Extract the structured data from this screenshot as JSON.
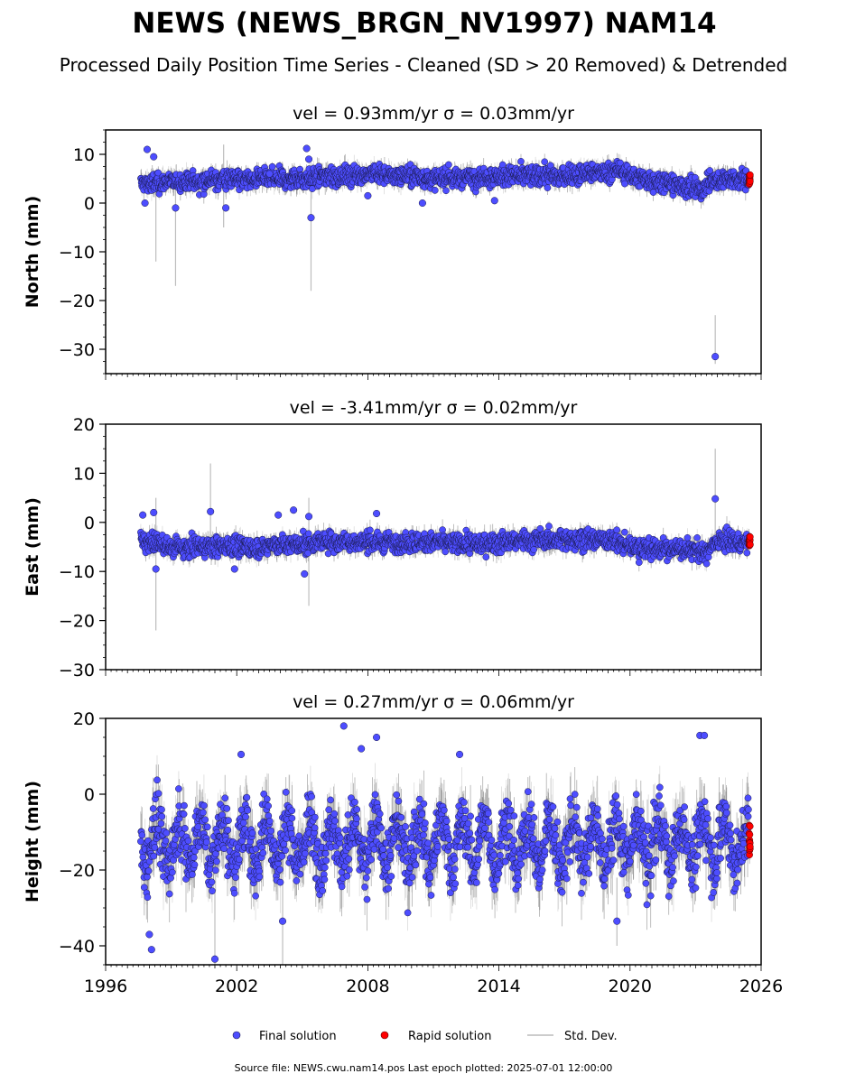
{
  "title": "NEWS (NEWS_BRGN_NV1997) NAM14",
  "subtitle": "Processed Daily Position Time Series - Cleaned (SD > 20 Removed) & Detrended",
  "footer": "Source file: NEWS.cwu.nam14.pos  Last epoch plotted: 2025-07-01 12:00:00",
  "legend": {
    "placement": "bottom-center",
    "items": [
      {
        "label": "Final solution",
        "color": "#4a4aff",
        "kind": "marker"
      },
      {
        "label": "Rapid solution",
        "color": "#ff0000",
        "kind": "marker"
      },
      {
        "label": "Std. Dev.",
        "color": "#cccccc",
        "kind": "line"
      }
    ]
  },
  "colors": {
    "final_fill": "#4d4dff",
    "final_edge": "#1a1a4d",
    "rapid_fill": "#ff0000",
    "errorbar": "#bdbdbd",
    "errorbar_dense": "#6e6e6e"
  },
  "chart_data": [
    {
      "type": "scatter",
      "panel": "north",
      "title": "vel = 0.93mm/yr   σ = 0.03mm/yr",
      "ylabel": "North (mm)",
      "xlabel": "",
      "xlim": [
        1996,
        2026
      ],
      "ylim": [
        -35,
        15
      ],
      "yticks": [
        10,
        0,
        -10,
        -20,
        -30
      ],
      "ytick_labels": [
        "10",
        "0",
        "−10",
        "−20",
        "−30"
      ],
      "show_x_ticklabels": false,
      "series": [
        {
          "name": "Final solution",
          "x_range": [
            1997.6,
            2025.45
          ],
          "baseline": [
            [
              1997.6,
              4.0
            ],
            [
              2001,
              4.8
            ],
            [
              2005,
              5.0
            ],
            [
              2008,
              6.0
            ],
            [
              2011,
              5.0
            ],
            [
              2014,
              5.5
            ],
            [
              2017,
              5.5
            ],
            [
              2019.5,
              6.5
            ],
            [
              2021,
              4.5
            ],
            [
              2022.5,
              3.5
            ],
            [
              2023.3,
              2.5
            ],
            [
              2023.6,
              4.5
            ],
            [
              2025.45,
              5.0
            ]
          ],
          "spread": 1.4,
          "sigma": 1.5
        },
        {
          "name": "Rapid solution",
          "x_range": [
            2025.45,
            2025.5
          ],
          "baseline": [
            [
              2025.45,
              5.0
            ],
            [
              2025.5,
              5.0
            ]
          ],
          "spread": 1.0,
          "sigma": 0.8
        }
      ],
      "outliers": [
        [
          1997.9,
          11.0
        ],
        [
          1997.8,
          0.0
        ],
        [
          1998.2,
          9.5
        ],
        [
          1999.2,
          -1.0
        ],
        [
          2001.5,
          -1.0
        ],
        [
          2003.5,
          6.0
        ],
        [
          2005.2,
          11.2
        ],
        [
          2005.4,
          -3.0
        ],
        [
          2005.3,
          9.0
        ],
        [
          2008.0,
          1.5
        ],
        [
          2010.5,
          0.0
        ],
        [
          2023.9,
          -31.5
        ],
        [
          2013.8,
          0.5
        ]
      ],
      "long_sd": [
        [
          1999.2,
          -17.0,
          4.0
        ],
        [
          2005.4,
          -18.0,
          7.0
        ],
        [
          2023.9,
          -33.0,
          -23.0
        ],
        [
          2001.4,
          -5.0,
          12.0
        ],
        [
          1998.3,
          -12.0,
          6.0
        ]
      ]
    },
    {
      "type": "scatter",
      "panel": "east",
      "title": "vel = -3.41mm/yr   σ = 0.02mm/yr",
      "ylabel": "East (mm)",
      "xlabel": "",
      "xlim": [
        1996,
        2026
      ],
      "ylim": [
        -30,
        20
      ],
      "yticks": [
        20,
        10,
        0,
        -10,
        -20,
        -30
      ],
      "ytick_labels": [
        "20",
        "10",
        "0",
        "−10",
        "−20",
        "−30"
      ],
      "show_x_ticklabels": false,
      "series": [
        {
          "name": "Final solution",
          "x_range": [
            1997.6,
            2025.45
          ],
          "baseline": [
            [
              1997.6,
              -3.5
            ],
            [
              1999,
              -5.0
            ],
            [
              2003,
              -5.0
            ],
            [
              2006,
              -4.0
            ],
            [
              2010,
              -4.0
            ],
            [
              2013,
              -4.5
            ],
            [
              2016,
              -3.5
            ],
            [
              2019,
              -3.5
            ],
            [
              2020.5,
              -5.5
            ],
            [
              2023,
              -5.5
            ],
            [
              2023.5,
              -6.5
            ],
            [
              2024,
              -3.5
            ],
            [
              2025.45,
              -4.5
            ]
          ],
          "spread": 1.4,
          "sigma": 1.5
        },
        {
          "name": "Rapid solution",
          "x_range": [
            2025.45,
            2025.5
          ],
          "baseline": [
            [
              2025.45,
              -4.0
            ],
            [
              2025.5,
              -4.0
            ]
          ],
          "spread": 0.8,
          "sigma": 0.8
        }
      ],
      "outliers": [
        [
          1997.7,
          1.5
        ],
        [
          1998.2,
          2.0
        ],
        [
          1998.3,
          -9.5
        ],
        [
          2000.8,
          2.2
        ],
        [
          2001.9,
          -9.5
        ],
        [
          2003.9,
          1.5
        ],
        [
          2005.1,
          -10.5
        ],
        [
          2005.3,
          1.2
        ],
        [
          2008.4,
          1.8
        ],
        [
          2023.9,
          4.8
        ],
        [
          2004.6,
          2.5
        ]
      ],
      "long_sd": [
        [
          1998.3,
          -22.0,
          5.0
        ],
        [
          2000.8,
          -5.0,
          12.0
        ],
        [
          2023.9,
          -3.0,
          15.0
        ],
        [
          2005.3,
          -17.0,
          5.0
        ]
      ]
    },
    {
      "type": "scatter",
      "panel": "height",
      "title": "vel = 0.27mm/yr   σ = 0.06mm/yr",
      "ylabel": "Height (mm)",
      "xlabel": "",
      "xlim": [
        1996,
        2026
      ],
      "ylim": [
        -45,
        20
      ],
      "yticks": [
        20,
        0,
        -20,
        -40
      ],
      "ytick_labels": [
        "20",
        "0",
        "−20",
        "−40"
      ],
      "xticks": [
        1996,
        2002,
        2008,
        2014,
        2020,
        2026
      ],
      "xtick_labels": [
        "1996",
        "2002",
        "2008",
        "2014",
        "2020",
        "2026"
      ],
      "show_x_ticklabels": true,
      "series": [
        {
          "name": "Final solution",
          "x_range": [
            1997.6,
            2025.45
          ],
          "baseline": [
            [
              1997.6,
              -13.0
            ],
            [
              2025.45,
              -13.0
            ]
          ],
          "seasonal_amp": 6.0,
          "spread": 5.5,
          "sigma": 6.0
        },
        {
          "name": "Rapid solution",
          "x_range": [
            2025.45,
            2025.5
          ],
          "baseline": [
            [
              2025.45,
              -13.0
            ],
            [
              2025.5,
              -13.0
            ]
          ],
          "spread": 4.0,
          "sigma": 2.0
        }
      ],
      "outliers": [
        [
          1998.0,
          -37.0
        ],
        [
          1998.1,
          -41.0
        ],
        [
          2001.0,
          -43.5
        ],
        [
          2002.2,
          10.5
        ],
        [
          2004.1,
          -33.5
        ],
        [
          2006.9,
          18.0
        ],
        [
          2008.4,
          15.0
        ],
        [
          2012.2,
          10.5
        ],
        [
          2019.4,
          -33.5
        ],
        [
          2023.2,
          15.5
        ],
        [
          2023.4,
          15.5
        ],
        [
          2007.7,
          12.0
        ]
      ],
      "long_sd": [
        [
          2001.0,
          -48.0,
          -25.0
        ],
        [
          2004.1,
          -45.0,
          -20.0
        ],
        [
          2019.4,
          -40.0,
          -22.0
        ]
      ]
    }
  ]
}
